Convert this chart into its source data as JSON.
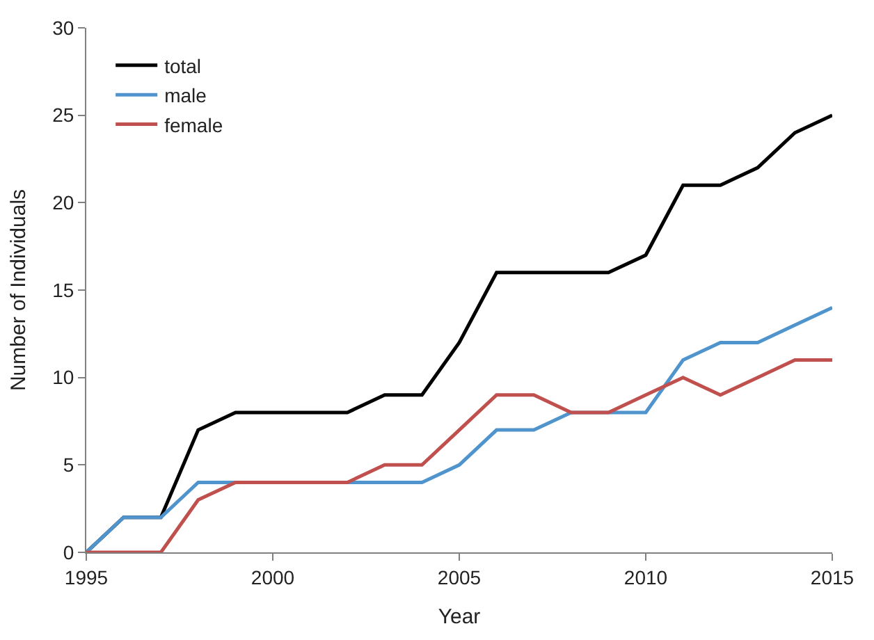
{
  "chart_data": {
    "type": "line",
    "xlabel": "Year",
    "ylabel": "Number of Individuals",
    "x": [
      1995,
      1996,
      1997,
      1998,
      1999,
      2000,
      2001,
      2002,
      2003,
      2004,
      2005,
      2006,
      2007,
      2008,
      2009,
      2010,
      2011,
      2012,
      2013,
      2014,
      2015
    ],
    "series": [
      {
        "name": "total",
        "color": "#000000",
        "values": [
          0,
          2,
          2,
          7,
          8,
          8,
          8,
          8,
          9,
          9,
          12,
          16,
          16,
          16,
          16,
          17,
          21,
          21,
          22,
          24,
          25
        ]
      },
      {
        "name": "male",
        "color": "#4f94cd",
        "values": [
          0,
          2,
          2,
          4,
          4,
          4,
          4,
          4,
          4,
          4,
          5,
          7,
          7,
          8,
          8,
          8,
          11,
          12,
          12,
          13,
          14
        ]
      },
      {
        "name": "female",
        "color": "#c0504d",
        "values": [
          0,
          0,
          0,
          3,
          4,
          4,
          4,
          4,
          5,
          5,
          7,
          9,
          9,
          8,
          8,
          9,
          10,
          9,
          10,
          11,
          11
        ]
      }
    ],
    "xlim": [
      1995,
      2015
    ],
    "xticks": [
      1995,
      2000,
      2005,
      2010,
      2015
    ],
    "ylim": [
      0,
      30
    ],
    "yticks": [
      0,
      5,
      10,
      15,
      20,
      25,
      30
    ],
    "legend": "top left",
    "marker": "none",
    "line_style": "solid"
  }
}
